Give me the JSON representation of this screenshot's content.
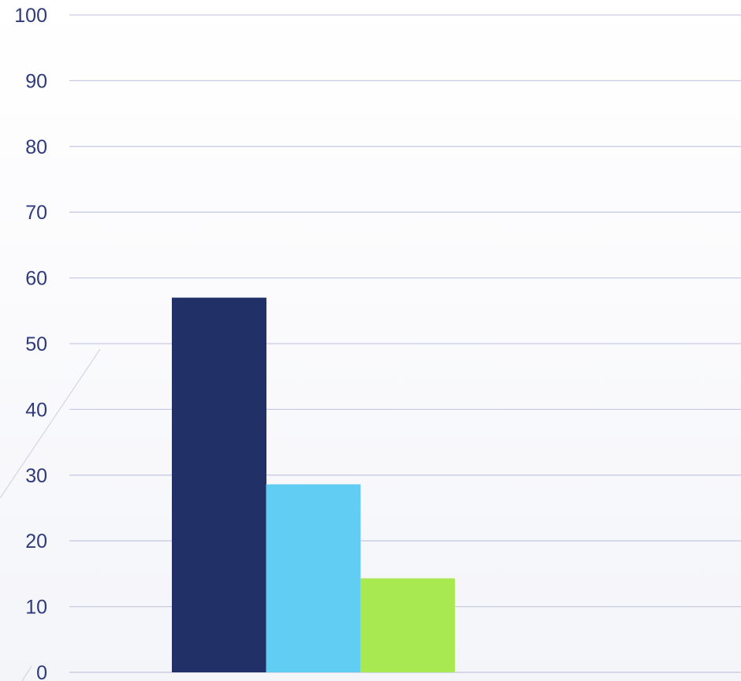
{
  "chart_data": {
    "type": "bar",
    "categories": [
      ""
    ],
    "series": [
      {
        "values": [
          57
        ],
        "color": "#213067"
      },
      {
        "values": [
          28.6
        ],
        "color": "#62cdf3"
      },
      {
        "values": [
          14.3
        ],
        "color": "#a8e952"
      }
    ],
    "title": "",
    "xlabel": "",
    "ylabel": "",
    "ylim": [
      0,
      100
    ],
    "yticks": [
      "0",
      "10",
      "20",
      "30",
      "40",
      "50",
      "60",
      "70",
      "80",
      "90",
      "100"
    ],
    "grid": true,
    "legend": "none",
    "colors": {
      "tick_label": "#2f3b7a",
      "gridline": "#c9cbe4"
    }
  }
}
